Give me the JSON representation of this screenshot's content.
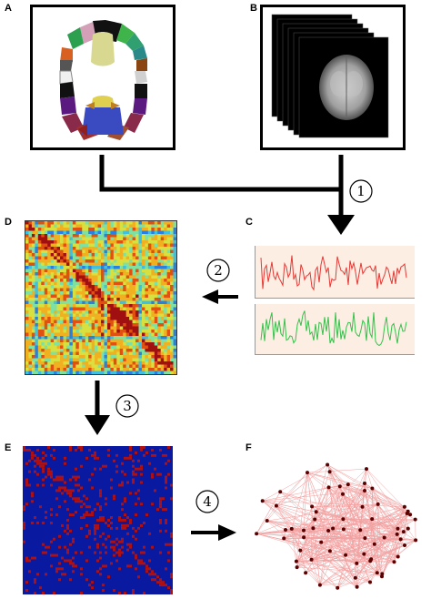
{
  "labels": {
    "a": "A",
    "b": "B",
    "c": "C",
    "d": "D",
    "e": "E",
    "f": "F"
  },
  "steps": {
    "s1": "1",
    "s2": "2",
    "s3": "3",
    "s4": "4"
  },
  "colors": {
    "signal1": "#e53935",
    "signal2": "#33c24a",
    "signal_bg": "#fdeee4",
    "binary_bg": "#0a1aa0",
    "binary_fg": "#b01010",
    "network_edge": "#f2a0a0",
    "network_node": "#5a0000"
  }
}
